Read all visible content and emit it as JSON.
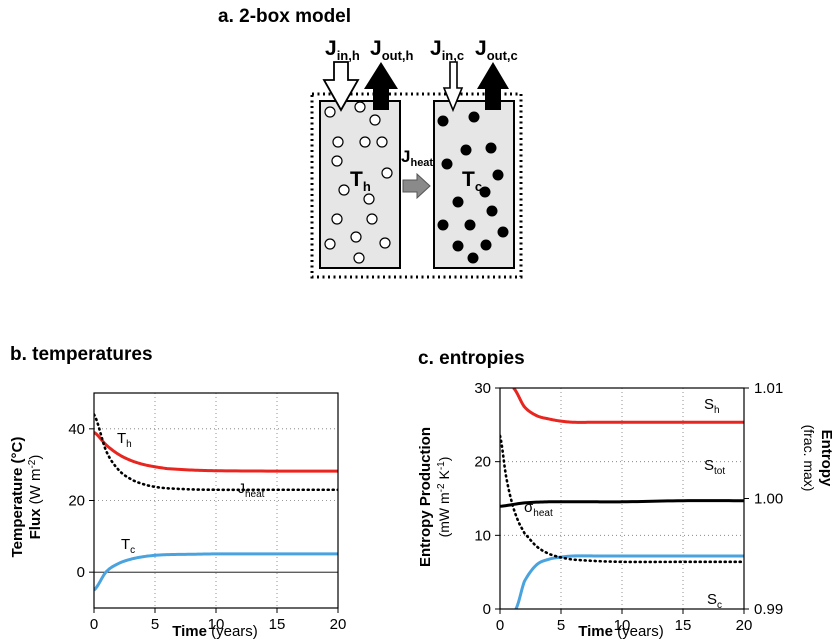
{
  "panel_a": {
    "title": "a. 2-box model",
    "j_in_h": {
      "main": "J",
      "sub": "in,h"
    },
    "j_out_h": {
      "main": "J",
      "sub": "out,h"
    },
    "j_in_c": {
      "main": "J",
      "sub": "in,c"
    },
    "j_out_c": {
      "main": "J",
      "sub": "out,c"
    },
    "j_heat": {
      "main": "J",
      "sub": "heat"
    },
    "t_h": {
      "main": "T",
      "sub": "h"
    },
    "t_c": {
      "main": "T",
      "sub": "c"
    }
  },
  "panel_b": {
    "title": "b. temperatures",
    "ylabel_line1": "Temperature (°C)",
    "ylabel_line2_bold": "Flux",
    "ylabel_line2_rest": " (W m",
    "ylabel_sup": "-2",
    "ylabel_close": ")",
    "xlabel_bold": "Time",
    "xlabel_rest": " (years)",
    "label_th": {
      "main": "T",
      "sub": "h"
    },
    "label_tc": {
      "main": "T",
      "sub": "c"
    },
    "label_jheat": {
      "main": "J",
      "sub": "heat"
    },
    "colors": {
      "th": "#e8251f",
      "tc": "#4aa3df",
      "jheat": "#000000"
    }
  },
  "panel_c": {
    "title": "c. entropies",
    "ylabel_left_line1": "Entropy Production",
    "ylabel_left_line2": "(mW m",
    "ylabel_left_sup1": "-2",
    "ylabel_left_mid": " K",
    "ylabel_left_sup2": "-1",
    "ylabel_left_close": ")",
    "ylabel_right_line1": "Entropy",
    "ylabel_right_line2": "(frac. max)",
    "xlabel_bold": "Time",
    "xlabel_rest": " (years)",
    "label_sh": {
      "main": "S",
      "sub": "h"
    },
    "label_stot": {
      "main": "S",
      "sub": "tot"
    },
    "label_sc": {
      "main": "S",
      "sub": "c"
    },
    "label_sigma": {
      "main": "σ",
      "sub": "heat"
    },
    "colors": {
      "sh": "#e8251f",
      "sc": "#4aa3df",
      "stot": "#000000",
      "sigma": "#000000"
    }
  },
  "chart_data": [
    {
      "type": "line",
      "title": "b. temperatures",
      "xlabel": "Time (years)",
      "ylabel": "Temperature (°C) Flux (W m-2)",
      "xlim": [
        0,
        20
      ],
      "ylim": [
        -10,
        50
      ],
      "xticks": [
        "0",
        "5",
        "10",
        "15",
        "20"
      ],
      "yticks": [
        "0",
        "20",
        "40"
      ],
      "grid": true,
      "series": [
        {
          "name": "Th",
          "x": [
            0,
            1,
            2,
            3,
            4,
            5,
            6,
            8,
            10,
            15,
            20
          ],
          "values": [
            39,
            35.5,
            32.9,
            31.2,
            30.1,
            29.4,
            28.9,
            28.5,
            28.3,
            28.2,
            28.2
          ]
        },
        {
          "name": "Tc",
          "x": [
            0,
            1,
            2,
            3,
            4,
            5,
            6,
            8,
            10,
            15,
            20
          ],
          "values": [
            -5,
            0.1,
            2.4,
            3.6,
            4.3,
            4.7,
            4.9,
            5.0,
            5.1,
            5.1,
            5.1
          ]
        },
        {
          "name": "Jheat",
          "x": [
            0,
            1,
            2,
            3,
            4,
            5,
            6,
            8,
            10,
            15,
            20
          ],
          "values": [
            44,
            33.8,
            28.6,
            26.0,
            24.6,
            23.8,
            23.4,
            23.1,
            23.0,
            23.0,
            23.0
          ]
        }
      ]
    },
    {
      "type": "line",
      "title": "c. entropies",
      "xlabel": "Time (years)",
      "ylabel": "Entropy Production (mW m-2 K-1)",
      "ylabel_right": "Entropy (frac. max)",
      "xlim": [
        0,
        20
      ],
      "ylim": [
        0,
        30
      ],
      "ylim_right": [
        0.99,
        1.01
      ],
      "xticks": [
        "0",
        "5",
        "10",
        "15",
        "20"
      ],
      "yticks": [
        "0",
        "10",
        "20",
        "30"
      ],
      "yticks_right": [
        "0.99",
        "1.00",
        "1.01"
      ],
      "grid": true,
      "series": [
        {
          "name": "Sh",
          "axis": "right",
          "x": [
            1.1,
            2,
            3,
            4,
            5,
            6,
            8,
            10,
            15,
            20
          ],
          "values": [
            1.01,
            1.0083,
            1.0075,
            1.0072,
            1.007,
            1.0069,
            1.0069,
            1.0069,
            1.0069,
            1.0069
          ]
        },
        {
          "name": "Stot",
          "axis": "right",
          "x": [
            0,
            2,
            4,
            6,
            8,
            10,
            15,
            20
          ],
          "values": [
            0.9993,
            0.9996,
            0.9997,
            0.9997,
            0.9997,
            0.9997,
            0.9998,
            0.9998
          ]
        },
        {
          "name": "Sc",
          "axis": "right",
          "x": [
            1.3,
            2,
            3,
            4,
            5,
            6,
            8,
            10,
            15,
            20
          ],
          "values": [
            0.99,
            0.9925,
            0.994,
            0.9945,
            0.9947,
            0.9948,
            0.9948,
            0.9948,
            0.9948,
            0.9948
          ]
        },
        {
          "name": "σheat",
          "axis": "left",
          "x": [
            0,
            0.5,
            1,
            1.5,
            2,
            3,
            4,
            5,
            6,
            8,
            10,
            15,
            20
          ],
          "values": [
            23.5,
            18,
            14.3,
            11.9,
            10.3,
            8.5,
            7.5,
            7.0,
            6.7,
            6.5,
            6.4,
            6.4,
            6.4
          ]
        }
      ]
    }
  ]
}
